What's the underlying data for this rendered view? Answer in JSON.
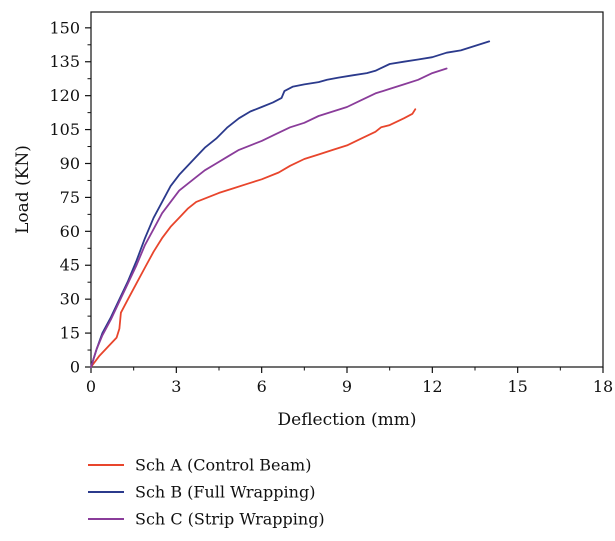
{
  "chart_data": {
    "type": "line",
    "title": "",
    "xlabel": "Deflection (mm)",
    "ylabel": "Load (KN)",
    "xlim": [
      0,
      18
    ],
    "ylim": [
      0,
      157
    ],
    "xticks": [
      0,
      3,
      6,
      9,
      12,
      15,
      18
    ],
    "yticks": [
      0,
      15,
      30,
      45,
      60,
      75,
      90,
      105,
      120,
      135,
      150
    ],
    "grid": false,
    "legend_position": "bottom",
    "series": [
      {
        "name": "Sch A (Control Beam)",
        "color": "#e8452c",
        "x": [
          0,
          0.3,
          0.6,
          0.9,
          1.0,
          1.05,
          1.3,
          1.6,
          1.9,
          2.2,
          2.5,
          2.8,
          3.1,
          3.4,
          3.7,
          4.1,
          4.5,
          5.0,
          5.5,
          6.0,
          6.6,
          7.0,
          7.5,
          8.0,
          8.5,
          9.0,
          9.5,
          10.0,
          10.2,
          10.5,
          11.0,
          11.3,
          11.4
        ],
        "y": [
          0,
          5,
          9,
          13,
          17,
          24,
          30,
          37,
          44,
          51,
          57,
          62,
          66,
          70,
          73,
          75,
          77,
          79,
          81,
          83,
          86,
          89,
          92,
          94,
          96,
          98,
          101,
          104,
          106,
          107,
          110,
          112,
          114
        ]
      },
      {
        "name": "Sch B (Full Wrapping)",
        "color": "#2b3a8c",
        "x": [
          0,
          0.2,
          0.4,
          0.7,
          1.0,
          1.3,
          1.6,
          1.9,
          2.2,
          2.5,
          2.8,
          3.1,
          3.4,
          3.7,
          4.0,
          4.4,
          4.8,
          5.2,
          5.6,
          6.0,
          6.4,
          6.7,
          6.8,
          7.1,
          7.5,
          8.0,
          8.3,
          8.7,
          9.2,
          9.7,
          10.0,
          10.5,
          11.0,
          11.5,
          12.0,
          12.5,
          13.0,
          13.5,
          14.0
        ],
        "y": [
          0,
          8,
          15,
          22,
          30,
          38,
          47,
          57,
          66,
          73,
          80,
          85,
          89,
          93,
          97,
          101,
          106,
          110,
          113,
          115,
          117,
          119,
          122,
          124,
          125,
          126,
          127,
          128,
          129,
          130,
          131,
          134,
          135,
          136,
          137,
          139,
          140,
          142,
          144
        ]
      },
      {
        "name": "Sch C (Strip Wrapping)",
        "color": "#8a3c9a",
        "x": [
          0,
          0.2,
          0.4,
          0.7,
          1.0,
          1.3,
          1.6,
          1.9,
          2.2,
          2.5,
          2.8,
          3.1,
          3.4,
          3.7,
          4.0,
          4.4,
          4.8,
          5.2,
          5.6,
          6.0,
          6.5,
          7.0,
          7.5,
          8.0,
          8.5,
          9.0,
          9.5,
          10.0,
          10.5,
          11.0,
          11.5,
          12.0,
          12.5
        ],
        "y": [
          0,
          8,
          14,
          21,
          29,
          37,
          45,
          54,
          61,
          68,
          73,
          78,
          81,
          84,
          87,
          90,
          93,
          96,
          98,
          100,
          103,
          106,
          108,
          111,
          113,
          115,
          118,
          121,
          123,
          125,
          127,
          130,
          132
        ]
      }
    ]
  }
}
